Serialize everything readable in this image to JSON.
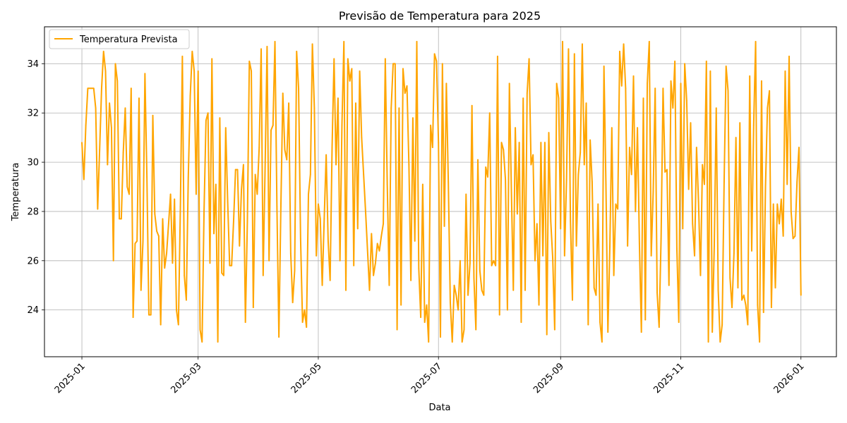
{
  "chart_data": {
    "type": "line",
    "title": "Previsão de Temperatura para 2025",
    "xlabel": "Data",
    "ylabel": "Temperatura",
    "x_ticks": [
      "2025-01",
      "2025-03",
      "2025-05",
      "2025-07",
      "2025-09",
      "2025-11",
      "2026-01"
    ],
    "y_ticks": [
      24,
      26,
      28,
      30,
      32,
      34
    ],
    "xlim": [
      "2024-12-13",
      "2026-01-19"
    ],
    "ylim": [
      22.1,
      35.5
    ],
    "grid": true,
    "legend_position": "upper-left",
    "series": [
      {
        "name": "Temperatura Prevista",
        "color": "#ffa500",
        "x_start": "2025-01-01",
        "x_step": "1 day",
        "values": [
          30.8,
          29.3,
          31.5,
          33.0,
          33.0,
          33.0,
          33.0,
          32.2,
          28.1,
          30.5,
          33.0,
          34.5,
          33.7,
          29.9,
          32.4,
          31.4,
          26.0,
          34.0,
          33.3,
          27.7,
          27.7,
          30.4,
          32.2,
          29.0,
          28.7,
          33.0,
          23.7,
          26.7,
          26.8,
          32.6,
          24.8,
          26.8,
          33.6,
          29.4,
          23.8,
          23.8,
          31.9,
          27.9,
          27.2,
          27.0,
          23.4,
          27.7,
          25.7,
          26.3,
          27.5,
          28.7,
          25.9,
          28.5,
          24.0,
          23.4,
          28.2,
          34.3,
          25.4,
          24.4,
          29.4,
          32.7,
          34.5,
          33.7,
          28.7,
          33.7,
          23.2,
          22.7,
          28.0,
          31.7,
          32.0,
          25.9,
          34.2,
          27.1,
          29.1,
          22.7,
          31.8,
          25.5,
          25.4,
          31.4,
          28.4,
          25.8,
          25.8,
          27.6,
          29.7,
          29.7,
          26.6,
          28.9,
          29.9,
          23.5,
          27.6,
          34.1,
          33.7,
          24.1,
          29.5,
          28.7,
          30.6,
          34.6,
          25.4,
          29.8,
          34.7,
          26.0,
          31.3,
          31.5,
          34.9,
          28.2,
          22.9,
          28.2,
          32.8,
          30.5,
          30.1,
          32.4,
          26.3,
          24.3,
          25.6,
          34.5,
          33.0,
          26.9,
          23.5,
          24.0,
          23.3,
          28.7,
          29.5,
          34.8,
          32.2,
          26.2,
          28.3,
          27.7,
          25.0,
          27.7,
          30.3,
          26.8,
          25.2,
          30.6,
          34.2,
          29.9,
          32.6,
          26.0,
          31.5,
          34.9,
          24.8,
          34.2,
          33.3,
          33.8,
          25.8,
          32.4,
          27.3,
          33.7,
          31.0,
          29.5,
          28.0,
          26.4,
          24.8,
          27.1,
          25.4,
          25.9,
          26.7,
          26.4,
          27.0,
          27.5,
          34.2,
          29.1,
          25.0,
          32.2,
          34.0,
          34.0,
          23.2,
          32.2,
          24.2,
          33.8,
          32.8,
          33.1,
          29.9,
          25.2,
          31.8,
          26.8,
          34.9,
          25.7,
          23.7,
          29.1,
          23.5,
          24.2,
          22.7,
          31.5,
          30.6,
          34.4,
          34.1,
          30.8,
          22.9,
          34.0,
          27.4,
          33.2,
          29.2,
          24.3,
          22.7,
          25.0,
          24.6,
          24.0,
          26.0,
          22.7,
          23.2,
          28.7,
          24.6,
          25.9,
          32.3,
          25.3,
          23.2,
          30.1,
          25.6,
          24.8,
          24.6,
          29.8,
          29.4,
          32.0,
          25.8,
          26.0,
          25.8,
          34.3,
          23.8,
          30.8,
          30.5,
          29.3,
          24.0,
          33.2,
          28.9,
          24.8,
          31.4,
          27.9,
          30.8,
          23.5,
          32.6,
          24.8,
          32.8,
          34.2,
          29.9,
          30.3,
          26.0,
          27.5,
          24.2,
          30.8,
          26.2,
          30.8,
          23.0,
          31.2,
          27.6,
          26.1,
          23.2,
          33.2,
          32.6,
          27.3,
          34.9,
          26.2,
          29.3,
          34.6,
          27.6,
          24.4,
          34.4,
          26.6,
          29.5,
          30.4,
          34.8,
          29.9,
          32.4,
          23.4,
          30.9,
          29.2,
          24.9,
          24.6,
          28.3,
          23.5,
          22.7,
          33.9,
          29.1,
          23.1,
          26.6,
          31.4,
          25.4,
          28.3,
          28.1,
          34.5,
          33.1,
          34.8,
          33.0,
          26.6,
          30.6,
          29.5,
          33.5,
          28.0,
          31.4,
          26.7,
          23.1,
          32.6,
          23.6,
          33.2,
          34.9,
          26.2,
          28.8,
          33.0,
          24.7,
          23.3,
          26.9,
          33.0,
          29.6,
          29.7,
          25.0,
          33.3,
          32.2,
          34.1,
          26.5,
          23.5,
          33.2,
          27.3,
          34.0,
          32.5,
          28.9,
          31.6,
          27.5,
          26.2,
          30.6,
          28.4,
          25.4,
          29.9,
          29.1,
          34.1,
          22.7,
          33.7,
          23.1,
          26.6,
          32.2,
          24.8,
          22.7,
          23.4,
          29.2,
          33.9,
          32.9,
          25.3,
          24.1,
          26.3,
          31.0,
          24.9,
          31.6,
          24.4,
          24.6,
          24.2,
          23.4,
          33.5,
          26.4,
          31.5,
          34.9,
          24.2,
          22.7,
          33.3,
          23.9,
          29.0,
          32.2,
          32.9,
          24.1,
          28.3,
          24.9,
          28.3,
          27.5,
          28.5,
          27.0,
          33.7,
          29.1,
          34.3,
          28.0,
          26.9,
          27.0,
          29.2,
          30.6,
          24.6
        ]
      }
    ]
  }
}
